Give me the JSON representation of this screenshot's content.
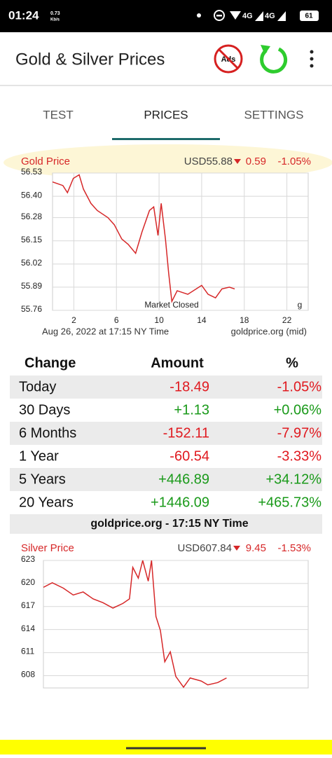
{
  "status_bar": {
    "time": "01:24",
    "speed": "0.73",
    "speed_unit": "Kb/s",
    "network_1": "4G",
    "network_2": "4G",
    "battery": "61"
  },
  "app_bar": {
    "title": "Gold & Silver Prices",
    "ads_icon": "Ads"
  },
  "tabs": [
    "TEST",
    "PRICES",
    "SETTINGS"
  ],
  "chart_data": [
    {
      "type": "line",
      "title": "Gold Price",
      "price": "USD55.88",
      "change": "0.59",
      "change_percent": "-1.05%",
      "x": [
        0,
        0.97,
        1.4,
        1.95,
        2.5,
        2.9,
        3.6,
        4.2,
        5.2,
        5.8,
        6.5,
        7.1,
        7.8,
        8.4,
        9.1,
        9.5,
        9.9,
        10.2,
        10.6,
        10.9,
        11.2,
        11.7,
        12.7,
        14,
        14.6,
        15.3,
        15.9,
        16.6,
        17.1
      ],
      "values": [
        56.48,
        56.46,
        56.42,
        56.5,
        56.52,
        56.44,
        56.36,
        56.32,
        56.28,
        56.24,
        56.16,
        56.13,
        56.08,
        56.2,
        56.32,
        56.34,
        56.18,
        56.36,
        56.16,
        55.97,
        55.81,
        55.87,
        55.85,
        55.9,
        55.85,
        55.83,
        55.88,
        55.89,
        55.88
      ],
      "color": "#d62728",
      "xlim": [
        0,
        24
      ],
      "xticks": [
        2,
        6,
        10,
        14,
        18,
        22
      ],
      "ylim": [
        55.76,
        56.53
      ],
      "yticks": [
        56.53,
        {
          "value": 56.4,
          "label": "56.40"
        },
        56.28,
        56.15,
        56.02,
        55.89,
        55.76
      ],
      "grid": true,
      "annotations": [
        "Market Closed",
        "g"
      ],
      "footer_left": "Aug 26, 2022 at 17:15 NY Time",
      "footer_right": "goldprice.org (mid)"
    },
    {
      "type": "line",
      "title": "Silver Price",
      "price": "USD607.84",
      "change": "9.45",
      "change_percent": "-1.53%",
      "x": [
        0,
        0.8,
        1.8,
        2.7,
        3.6,
        4.5,
        5.4,
        6.3,
        7.2,
        7.8,
        8.1,
        8.6,
        9.0,
        9.5,
        9.8,
        10.2,
        10.6,
        11.0,
        11.5,
        12.0,
        12.7,
        13.3,
        14.3,
        14.9,
        15.8,
        16.6
      ],
      "values": [
        619.5,
        620.1,
        619.4,
        618.5,
        618.9,
        618.0,
        617.5,
        616.8,
        617.4,
        618.0,
        622.1,
        620.7,
        623,
        620.3,
        623,
        615.7,
        613.9,
        609.8,
        611.1,
        607.9,
        606.5,
        607.7,
        607.3,
        606.8,
        607.1,
        607.7
      ],
      "color": "#d62728",
      "xlim": [
        0,
        24
      ],
      "ylim": [
        606.4,
        623
      ],
      "yticks": [
        623,
        620,
        617,
        614,
        611,
        608
      ],
      "grid": true
    }
  ],
  "table": {
    "header": [
      "Change",
      "Amount",
      "%"
    ],
    "rows": [
      [
        "Today",
        "-18.49",
        "-1.05%"
      ],
      [
        "30 Days",
        "+1.13",
        "+0.06%"
      ],
      [
        "6 Months",
        "-152.11",
        "-7.97%"
      ],
      [
        "1 Year",
        "-60.54",
        "-3.33%"
      ],
      [
        "5 Years",
        "+446.89",
        "+34.12%"
      ],
      [
        "20 Years",
        "+1446.09",
        "+465.73%"
      ]
    ]
  },
  "table_footer": "goldprice.org - 17:15 NY Time"
}
